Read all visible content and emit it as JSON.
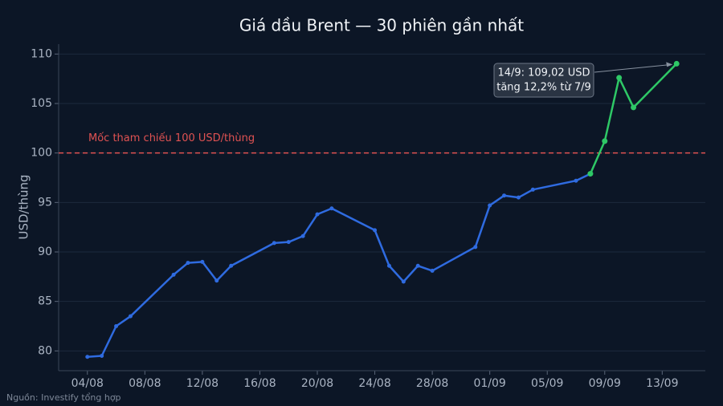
{
  "chart_data": {
    "type": "line",
    "title": "Giá dầu Brent — 30 phiên gần nhất",
    "y_label": "USD/thùng",
    "source": "Nguồn: Investify tổng hợp",
    "x": [
      "04/08",
      "05/08",
      "06/08",
      "07/08",
      "10/08",
      "11/08",
      "12/08",
      "13/08",
      "14/08",
      "17/08",
      "18/08",
      "19/08",
      "20/08",
      "21/08",
      "24/08",
      "25/08",
      "26/08",
      "27/08",
      "28/08",
      "31/08",
      "01/09",
      "02/09",
      "03/09",
      "04/09",
      "07/09",
      "08/09",
      "09/09",
      "10/09",
      "11/09",
      "14/09"
    ],
    "series": [
      {
        "color": "#2f6be0",
        "highlight_color": "#2ec866",
        "highlight_start": "08/09",
        "values": [
          79.4,
          79.5,
          82.5,
          83.5,
          87.7,
          88.9,
          89.0,
          87.1,
          88.6,
          90.9,
          91.0,
          91.6,
          93.8,
          94.4,
          92.2,
          88.6,
          87.0,
          88.6,
          88.1,
          90.5,
          94.7,
          95.7,
          95.5,
          96.3,
          97.2,
          97.9,
          101.2,
          107.6,
          104.6,
          109.02
        ]
      }
    ],
    "xlim": [
      "02/08",
      "16/09"
    ],
    "xticks": [
      "04/08",
      "08/08",
      "12/08",
      "16/08",
      "20/08",
      "24/08",
      "28/08",
      "01/09",
      "05/09",
      "09/09",
      "13/09"
    ],
    "ylim": [
      78,
      111
    ],
    "yticks": [
      80,
      85,
      90,
      95,
      100,
      105,
      110
    ],
    "grid": true,
    "reference_line": {
      "value": 100,
      "label": "Mốc tham chiếu 100 USD/thùng",
      "color": "#e05252"
    },
    "annotation": {
      "lines": [
        "14/9: 109,02 USD",
        "tăng 12,2% từ 7/9"
      ]
    }
  }
}
